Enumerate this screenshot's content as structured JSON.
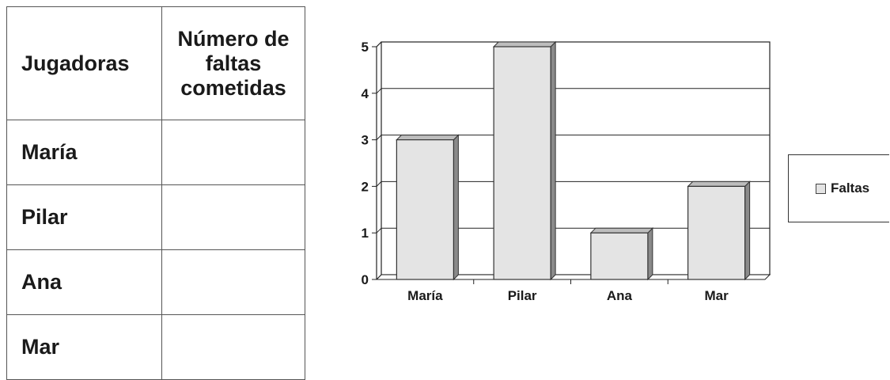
{
  "table": {
    "headers": [
      "Jugadoras",
      "Número de faltas cometidas"
    ],
    "rows": [
      {
        "name": "María",
        "faltas": ""
      },
      {
        "name": "Pilar",
        "faltas": ""
      },
      {
        "name": "Ana",
        "faltas": ""
      },
      {
        "name": "Mar",
        "faltas": ""
      }
    ]
  },
  "chart_data": {
    "type": "bar",
    "categories": [
      "María",
      "Pilar",
      "Ana",
      "Mar"
    ],
    "series": [
      {
        "name": "Faltas",
        "values": [
          3,
          5,
          1,
          2
        ]
      }
    ],
    "ylim": [
      0,
      5
    ],
    "yticks": [
      "0",
      "1",
      "2",
      "3",
      "4",
      "5"
    ],
    "grid": true,
    "legend_position": "right",
    "bar_color": "#e4e4e4",
    "bar_edge_color": "#333333"
  }
}
